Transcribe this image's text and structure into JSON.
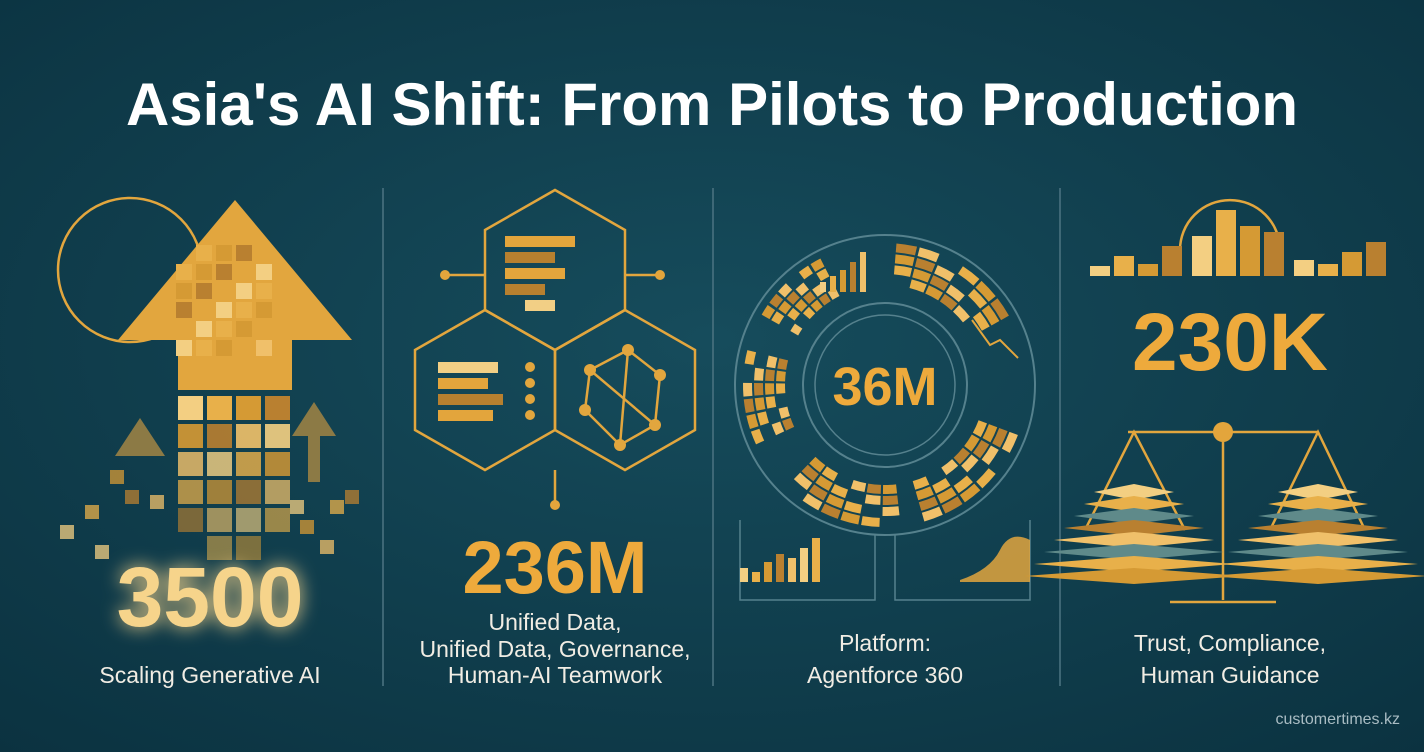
{
  "header": {
    "title": "Asia's AI Shift: From Pilots to Production"
  },
  "panels": [
    {
      "stat": "3500",
      "caption": [
        "Scaling Generative AI"
      ]
    },
    {
      "stat": "236M",
      "caption": [
        "Unified Data,",
        "Unified Data, Governance,",
        "Human-AI Teamwork"
      ]
    },
    {
      "stat": "36M",
      "caption": [
        "Platform:",
        "Agentforce 360"
      ]
    },
    {
      "stat": "230K",
      "caption": [
        "Trust, Compliance,",
        "Human Guidance"
      ]
    }
  ],
  "footer": {
    "source": "customertimes.kz"
  }
}
